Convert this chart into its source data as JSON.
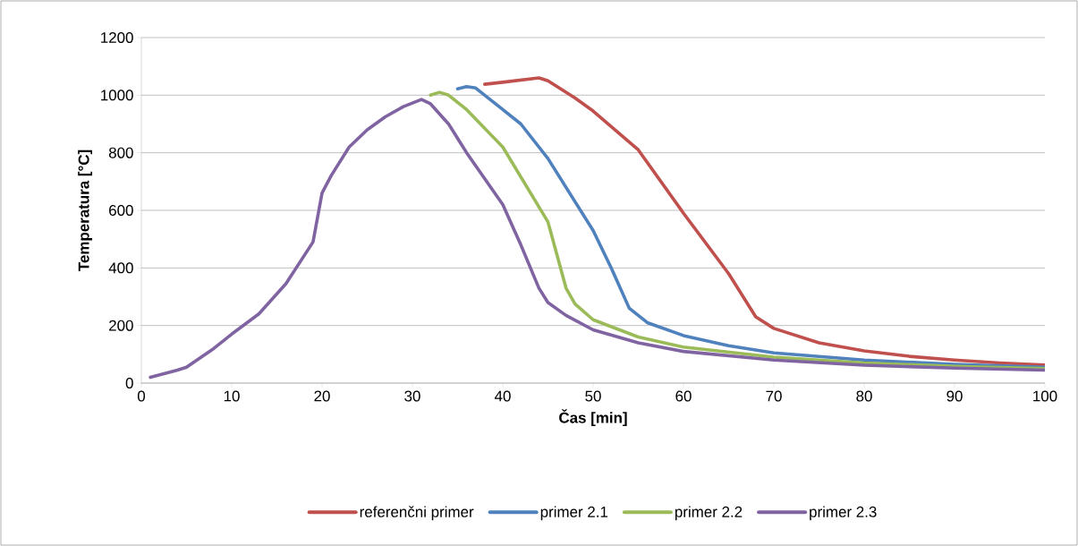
{
  "chart_data": {
    "type": "line",
    "xlabel": "Čas [min]",
    "ylabel": "Temperatura [°C]",
    "xlim": [
      0,
      100
    ],
    "xticks": [
      0,
      10,
      20,
      30,
      40,
      50,
      60,
      70,
      80,
      90,
      100
    ],
    "ylim": [
      0,
      1200
    ],
    "yticks": [
      0,
      200,
      400,
      600,
      800,
      1000,
      1200
    ],
    "grid": "y",
    "legend": "bottom",
    "marker": "none",
    "line_style": "solid",
    "series": [
      {
        "name": "referenčni primer",
        "color": "#c0504d",
        "x": [
          38,
          40,
          44,
          45,
          48,
          50,
          55,
          60,
          65,
          68,
          70,
          75,
          80,
          85,
          90,
          95,
          100
        ],
        "values": [
          1038,
          1045,
          1060,
          1050,
          990,
          945,
          810,
          590,
          380,
          230,
          190,
          140,
          112,
          93,
          80,
          70,
          63
        ]
      },
      {
        "name": "primer 2.1",
        "color": "#4f81bd",
        "x": [
          35,
          36,
          37,
          40,
          42,
          45,
          50,
          52,
          54,
          56,
          60,
          65,
          70,
          80,
          90,
          100
        ],
        "values": [
          1022,
          1030,
          1025,
          950,
          900,
          780,
          530,
          400,
          260,
          210,
          165,
          130,
          105,
          80,
          65,
          55
        ]
      },
      {
        "name": "primer 2.2",
        "color": "#9bbb59",
        "x": [
          32,
          33,
          34,
          36,
          40,
          45,
          47,
          48,
          50,
          55,
          60,
          70,
          80,
          90,
          100
        ],
        "values": [
          1000,
          1010,
          1000,
          950,
          820,
          560,
          330,
          275,
          220,
          160,
          125,
          90,
          70,
          58,
          50
        ]
      },
      {
        "name": "primer 2.3",
        "color": "#8064a2",
        "x": [
          1,
          4,
          5,
          8,
          10,
          13,
          16,
          19,
          20,
          21,
          23,
          25,
          27,
          29,
          31,
          32,
          34,
          36,
          40,
          42,
          44,
          45,
          47,
          50,
          55,
          60,
          70,
          80,
          90,
          100
        ],
        "values": [
          20,
          45,
          55,
          120,
          170,
          240,
          345,
          490,
          660,
          720,
          820,
          880,
          925,
          960,
          985,
          970,
          900,
          800,
          620,
          480,
          330,
          280,
          235,
          185,
          140,
          110,
          80,
          62,
          52,
          45
        ]
      }
    ]
  }
}
